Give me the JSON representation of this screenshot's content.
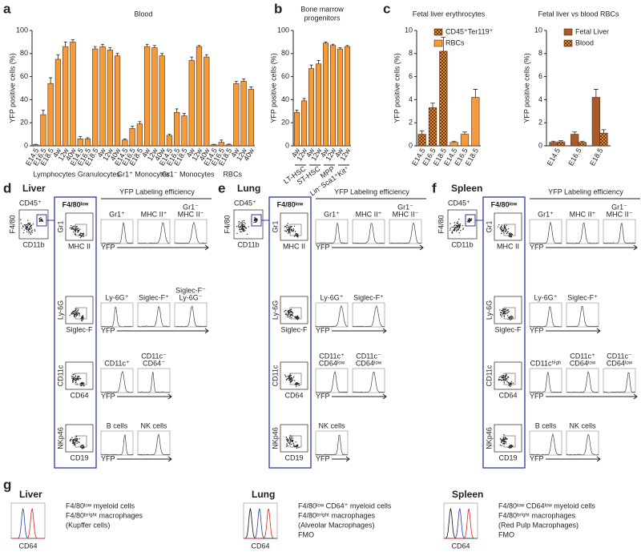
{
  "chart_data": [
    {
      "type": "bar",
      "panel": "a",
      "title": "Blood",
      "y_label": "YFP positive cells (%)",
      "ylim": [
        0,
        100
      ],
      "yticks": [
        0,
        20,
        40,
        60,
        80,
        100
      ],
      "color": "#f39a3b",
      "categories": [
        "E14.5",
        "E16.5",
        "E18.5",
        "4w",
        "12w",
        "40w",
        "E14.5",
        "E16.5",
        "E18.5",
        "4w",
        "12w",
        "40w",
        "E14.5",
        "E16.5",
        "E18.5",
        "4w",
        "12w",
        "40w",
        "E14.5",
        "E16.5",
        "E18.5",
        "4w",
        "12w",
        "40w",
        "E14.5",
        "E16.5",
        "E18.5",
        "4w",
        "12w",
        "40w"
      ],
      "group_labels": [
        "Lymphocytes",
        "Granulocytes",
        "Gr1⁺ Monocytes",
        "Gr1⁻ Monocytes",
        "RBCs"
      ],
      "values": [
        1,
        27,
        54,
        75,
        86,
        90,
        6,
        6,
        84,
        86,
        83,
        78,
        5,
        15,
        19,
        86,
        85,
        78,
        9,
        29,
        26,
        74,
        86,
        77,
        1,
        3,
        1,
        54,
        56,
        49
      ],
      "errors": [
        0.3,
        4,
        5,
        4,
        4,
        2,
        2,
        1,
        2,
        2,
        2,
        2,
        1,
        2,
        2,
        2,
        2,
        2,
        1,
        3,
        2,
        3,
        1,
        2,
        0.3,
        2,
        0.5,
        2,
        2,
        2
      ]
    },
    {
      "type": "bar",
      "panel": "b",
      "title": [
        "Bone marrow",
        "progenitors"
      ],
      "y_label": "YFP positive cells (%)",
      "ylim": [
        0,
        100
      ],
      "yticks": [
        0,
        20,
        40,
        60,
        80,
        100
      ],
      "color": "#f39a3b",
      "categories": [
        "4w",
        "12w",
        "4w",
        "12w",
        "4w",
        "12w",
        "4w",
        "12w"
      ],
      "group_labels": [
        "LT-HSC",
        "ST-HSC",
        "MPP",
        "Lin⁻Sca1⁺Kit⁺"
      ],
      "values": [
        29,
        39,
        67,
        71,
        89,
        87,
        84,
        86
      ],
      "errors": [
        2,
        2,
        3,
        3,
        1,
        1,
        1,
        1
      ]
    },
    {
      "type": "bar",
      "panel": "c",
      "title": "Fetal liver erythrocytes",
      "y_label": "YFP positive cells (%)",
      "ylim": [
        0,
        10
      ],
      "yticks": [
        0,
        2,
        4,
        6,
        8,
        10
      ],
      "legend": "upper right",
      "categories": [
        "E14.5",
        "E16.5",
        "E18.5",
        "E14.5",
        "E16.5",
        "E18.5"
      ],
      "series": [
        {
          "name": "CD45⁺Ter119⁺",
          "color": "#f39a3b",
          "hatch": true,
          "values": [
            1.0,
            3.3,
            8.2,
            null,
            null,
            null
          ],
          "errors": [
            0.3,
            0.4,
            1.2,
            null,
            null,
            null
          ]
        },
        {
          "name": "RBCs",
          "color": "#f39a3b",
          "hatch": false,
          "values": [
            null,
            null,
            null,
            0.3,
            1.0,
            4.2
          ],
          "errors": [
            null,
            null,
            null,
            0.1,
            0.2,
            0.7
          ]
        }
      ]
    },
    {
      "type": "bar",
      "title": "Fetal liver vs blood RBCs",
      "y_label": "YFP positive cells (%)",
      "ylim": [
        0,
        10
      ],
      "yticks": [
        0,
        2,
        4,
        6,
        8,
        10
      ],
      "legend": "upper right",
      "categories": [
        "E14.5",
        "E16.5",
        "E18.5"
      ],
      "series": [
        {
          "name": "Fetal Liver",
          "color": "#a85a2a",
          "hatch": false,
          "values": [
            0.3,
            1.0,
            4.2
          ],
          "errors": [
            0.1,
            0.2,
            0.7
          ]
        },
        {
          "name": "Blood",
          "color": "#f39a3b",
          "hatch": true,
          "values": [
            0.35,
            0.3,
            1.1
          ],
          "errors": [
            0.1,
            0.1,
            0.3
          ]
        }
      ]
    }
  ],
  "flow_panels": [
    {
      "letter": "d",
      "tissue": "Liver",
      "gate": {
        "top": "CD45⁺",
        "y": "F4/80",
        "x": "CD11b"
      },
      "gated_title": "F4/80ˡᵒʷ",
      "heading": "YFP Labeling efficiency",
      "x_label": "YFP",
      "rows": [
        {
          "y": "Gr1",
          "x": "MHC II",
          "hists": [
            [
              "Gr1⁺"
            ],
            [
              "MHC II⁺"
            ],
            [
              "Gr1⁻",
              "MHC II⁻"
            ]
          ]
        },
        {
          "y": "Ly-6G",
          "x": "Siglec-F",
          "hists": [
            [
              "Ly-6G⁺"
            ],
            [
              "Siglec-F⁺"
            ],
            [
              "Siglec-F⁻",
              "Ly-6G⁻"
            ]
          ]
        },
        {
          "y": "CD11c",
          "x": "CD64",
          "hists": [
            [
              "CD11c⁺"
            ],
            [
              "CD11c⁻",
              "CD64⁻"
            ]
          ]
        },
        {
          "y": "NKp46",
          "x": "CD19",
          "hists": [
            [
              "B cells"
            ],
            [
              "NK cells"
            ]
          ]
        }
      ]
    },
    {
      "letter": "e",
      "tissue": "Lung",
      "gate": {
        "top": "CD45⁺",
        "y": "F4/80",
        "x": "CD11b"
      },
      "gated_title": "F4/80ˡᵒʷ",
      "heading": "YFP Labeling efficiency",
      "x_label": "YFP",
      "rows": [
        {
          "y": "Gr1",
          "x": "MHC II",
          "hists": [
            [
              "Gr1⁺"
            ],
            [
              "MHC II⁺"
            ],
            [
              "Gr1⁻",
              "MHC II⁻"
            ]
          ]
        },
        {
          "y": "Ly-6G",
          "x": "Siglec-F",
          "hists": [
            [
              "Ly-6G⁺"
            ],
            [
              "Siglec-F⁺"
            ]
          ]
        },
        {
          "y": "CD11c",
          "x": "CD64",
          "hists": [
            [
              "CD11c⁺",
              "CD64ˡᵒʷ"
            ],
            [
              "CD11c⁻",
              "CD64ˡᵒʷ"
            ]
          ]
        },
        {
          "y": "NKp46",
          "x": "CD19",
          "hists": [
            [
              "NK cells"
            ]
          ]
        }
      ]
    },
    {
      "letter": "f",
      "tissue": "Spleen",
      "gate": {
        "top": "CD45⁺",
        "y": "F4/80",
        "x": "CD11b"
      },
      "gated_title": "F4/80ˡᵒʷ",
      "heading": "YFP Labeling efficiency",
      "x_label": "YFP",
      "rows": [
        {
          "y": "Gr1",
          "x": "MHC II",
          "hists": [
            [
              "Gr1⁺"
            ],
            [
              "MHC II⁺"
            ],
            [
              "Gr1⁻",
              "MHC II⁻"
            ]
          ]
        },
        {
          "y": "Ly-6G",
          "x": "Siglec-F",
          "hists": [
            [
              "Ly-6G⁺"
            ],
            [
              "Siglec-F⁺"
            ]
          ]
        },
        {
          "y": "CD11c",
          "x": "CD64",
          "hists": [
            [
              "CD11cʰⁱᵍʰ"
            ],
            [
              "CD11c⁺",
              "CD64ˡᵒʷ"
            ],
            [
              "CD11c⁻",
              "CD64ˡᵒʷ"
            ]
          ]
        },
        {
          "y": "NKp46",
          "x": "CD19",
          "hists": [
            [
              "B cells"
            ],
            [
              "NK cells"
            ]
          ]
        }
      ]
    }
  ],
  "panel_g": {
    "letter": "g",
    "x_label": "CD64",
    "items": [
      {
        "tissue": "Liver",
        "legend": [
          {
            "text": "F4/80ˡᵒʷ myeloid cells",
            "color": "#2b3a9b"
          },
          {
            "text": "F4/80ᵇʳⁱᵍʰᵗ macrophages",
            "color": "#e2231a"
          },
          {
            "text": "(Kupffer cells)",
            "color": "#e2231a"
          }
        ]
      },
      {
        "tissue": "Lung",
        "legend": [
          {
            "text": "F4/80ˡᵒʷ CD64⁺ myeloid cells",
            "color": "#2b3a9b"
          },
          {
            "text": "F4/80ᵇʳⁱᵍʰᵗ macrophages",
            "color": "#e2231a"
          },
          {
            "text": "(Alveolar Macrophages)",
            "color": "#e2231a"
          },
          {
            "text": "FMO",
            "color": "#111111"
          }
        ]
      },
      {
        "tissue": "Spleen",
        "legend": [
          {
            "text": "F4/80ˡᵒʷ CD64ˡᵒʷ myeloid cells",
            "color": "#2b3a9b"
          },
          {
            "text": "F4/80ᵇʳⁱᵍʰᵗ macrophages",
            "color": "#e2231a"
          },
          {
            "text": "(Red Pulp Macrophages)",
            "color": "#e2231a"
          },
          {
            "text": "FMO",
            "color": "#111111"
          }
        ]
      }
    ]
  }
}
